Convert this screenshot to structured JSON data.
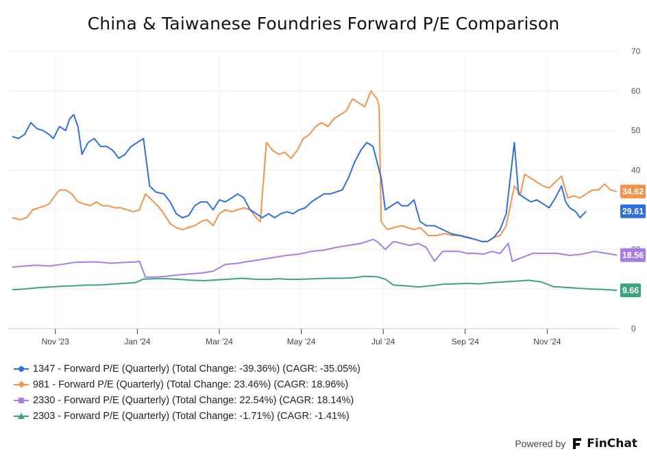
{
  "chart_data": {
    "type": "line",
    "title": "China & Taiwanese Foundries Forward P/E Comparison",
    "xlabel": "",
    "ylabel": "",
    "ylim": [
      0,
      70
    ],
    "yticks": [
      0,
      10,
      20,
      30,
      40,
      50,
      60,
      70
    ],
    "x_ticks": [
      "Nov '23",
      "Jan '24",
      "Mar '24",
      "May '24",
      "Jul '24",
      "Sep '24",
      "Nov '24"
    ],
    "x_range": [
      0,
      14.9
    ],
    "x_tick_positions": [
      1.15,
      3.15,
      5.15,
      7.15,
      9.15,
      11.15,
      13.15
    ],
    "grid": true,
    "series": [
      {
        "name": "1347 - Forward P/E (Quarterly) (Total Change: -39.36%) (CAGR: -35.05%)",
        "color": "#2e6fe0",
        "marker": "circle",
        "end_label": "29.61",
        "points": [
          [
            0.1,
            48.5
          ],
          [
            0.25,
            48
          ],
          [
            0.4,
            49
          ],
          [
            0.55,
            52
          ],
          [
            0.7,
            50.5
          ],
          [
            0.85,
            50
          ],
          [
            1.0,
            49
          ],
          [
            1.1,
            48
          ],
          [
            1.25,
            51
          ],
          [
            1.4,
            50
          ],
          [
            1.5,
            53
          ],
          [
            1.6,
            54
          ],
          [
            1.7,
            51
          ],
          [
            1.8,
            44
          ],
          [
            1.95,
            47
          ],
          [
            2.1,
            48
          ],
          [
            2.25,
            46
          ],
          [
            2.4,
            46
          ],
          [
            2.55,
            45
          ],
          [
            2.7,
            43
          ],
          [
            2.85,
            44
          ],
          [
            3.0,
            46
          ],
          [
            3.15,
            47
          ],
          [
            3.3,
            48
          ],
          [
            3.45,
            36
          ],
          [
            3.6,
            34.5
          ],
          [
            3.8,
            34
          ],
          [
            3.95,
            32
          ],
          [
            4.1,
            29
          ],
          [
            4.25,
            28
          ],
          [
            4.4,
            28.5
          ],
          [
            4.55,
            31
          ],
          [
            4.7,
            32
          ],
          [
            4.85,
            32
          ],
          [
            5.0,
            30
          ],
          [
            5.15,
            32.5
          ],
          [
            5.3,
            32
          ],
          [
            5.45,
            33
          ],
          [
            5.6,
            34
          ],
          [
            5.75,
            33
          ],
          [
            5.9,
            30
          ],
          [
            6.05,
            29
          ],
          [
            6.2,
            28
          ],
          [
            6.35,
            29
          ],
          [
            6.5,
            28
          ],
          [
            6.65,
            29
          ],
          [
            6.8,
            29.5
          ],
          [
            6.95,
            29
          ],
          [
            7.1,
            30
          ],
          [
            7.25,
            30.5
          ],
          [
            7.4,
            32
          ],
          [
            7.55,
            33
          ],
          [
            7.7,
            34
          ],
          [
            7.85,
            34
          ],
          [
            8.0,
            34.5
          ],
          [
            8.15,
            35
          ],
          [
            8.3,
            38
          ],
          [
            8.45,
            42
          ],
          [
            8.6,
            45
          ],
          [
            8.75,
            47
          ],
          [
            8.9,
            46
          ],
          [
            9.0,
            42
          ],
          [
            9.1,
            38
          ],
          [
            9.2,
            30
          ],
          [
            9.35,
            31
          ],
          [
            9.5,
            32
          ],
          [
            9.6,
            31
          ],
          [
            9.75,
            31
          ],
          [
            9.9,
            32.5
          ],
          [
            10.05,
            27
          ],
          [
            10.2,
            26
          ],
          [
            10.4,
            26
          ],
          [
            10.6,
            25
          ],
          [
            10.8,
            24
          ],
          [
            11.0,
            23.5
          ],
          [
            11.2,
            23
          ],
          [
            11.4,
            22.5
          ],
          [
            11.55,
            22
          ],
          [
            11.7,
            22
          ],
          [
            11.85,
            23
          ],
          [
            12.0,
            25
          ],
          [
            12.15,
            29
          ],
          [
            12.25,
            38
          ],
          [
            12.35,
            47
          ],
          [
            12.45,
            34
          ],
          [
            12.6,
            33
          ],
          [
            12.75,
            32
          ],
          [
            12.9,
            32.5
          ],
          [
            13.05,
            31.5
          ],
          [
            13.2,
            30.5
          ],
          [
            13.35,
            33
          ],
          [
            13.5,
            36
          ],
          [
            13.6,
            32
          ],
          [
            13.7,
            30.5
          ],
          [
            13.85,
            29.5
          ],
          [
            13.95,
            28
          ],
          [
            14.1,
            29.61
          ]
        ]
      },
      {
        "name": "981 - Forward P/E (Quarterly) (Total Change: 23.46%) (CAGR: 18.96%)",
        "color": "#f5924a",
        "marker": "diamond",
        "end_label": "34.62",
        "points": [
          [
            0.1,
            28
          ],
          [
            0.3,
            27.5
          ],
          [
            0.45,
            28
          ],
          [
            0.6,
            30
          ],
          [
            0.75,
            30.5
          ],
          [
            0.9,
            31
          ],
          [
            1.0,
            31.5
          ],
          [
            1.1,
            33
          ],
          [
            1.25,
            35
          ],
          [
            1.4,
            35
          ],
          [
            1.55,
            34
          ],
          [
            1.7,
            32
          ],
          [
            1.85,
            31.5
          ],
          [
            2.0,
            31
          ],
          [
            2.15,
            32
          ],
          [
            2.3,
            31
          ],
          [
            2.45,
            31
          ],
          [
            2.6,
            30.5
          ],
          [
            2.75,
            30.5
          ],
          [
            2.9,
            30
          ],
          [
            3.05,
            29.5
          ],
          [
            3.2,
            30
          ],
          [
            3.35,
            34
          ],
          [
            3.5,
            32.5
          ],
          [
            3.65,
            31
          ],
          [
            3.8,
            29
          ],
          [
            3.95,
            26.5
          ],
          [
            4.1,
            25.5
          ],
          [
            4.25,
            25
          ],
          [
            4.4,
            25.5
          ],
          [
            4.55,
            26
          ],
          [
            4.7,
            27
          ],
          [
            4.85,
            27.5
          ],
          [
            5.0,
            26
          ],
          [
            5.15,
            29
          ],
          [
            5.3,
            30
          ],
          [
            5.45,
            29.5
          ],
          [
            5.6,
            30
          ],
          [
            5.75,
            30.5
          ],
          [
            5.9,
            30
          ],
          [
            6.05,
            28
          ],
          [
            6.15,
            27
          ],
          [
            6.3,
            47
          ],
          [
            6.45,
            45
          ],
          [
            6.6,
            44
          ],
          [
            6.75,
            44.5
          ],
          [
            6.9,
            43
          ],
          [
            7.05,
            45
          ],
          [
            7.2,
            48
          ],
          [
            7.35,
            49
          ],
          [
            7.5,
            51
          ],
          [
            7.65,
            52
          ],
          [
            7.8,
            51
          ],
          [
            7.95,
            53
          ],
          [
            8.1,
            54
          ],
          [
            8.25,
            55
          ],
          [
            8.4,
            58
          ],
          [
            8.55,
            57
          ],
          [
            8.7,
            56
          ],
          [
            8.85,
            60
          ],
          [
            9.0,
            58
          ],
          [
            9.05,
            56
          ],
          [
            9.1,
            27
          ],
          [
            9.25,
            25
          ],
          [
            9.4,
            25.5
          ],
          [
            9.6,
            26
          ],
          [
            9.75,
            25.5
          ],
          [
            9.9,
            25
          ],
          [
            10.05,
            25.5
          ],
          [
            10.25,
            23.5
          ],
          [
            10.45,
            23.5
          ],
          [
            10.65,
            24
          ],
          [
            10.85,
            23.5
          ],
          [
            11.05,
            23.5
          ],
          [
            11.25,
            23
          ],
          [
            11.4,
            22.5
          ],
          [
            11.55,
            22
          ],
          [
            11.7,
            22
          ],
          [
            11.85,
            23
          ],
          [
            12.0,
            23.5
          ],
          [
            12.15,
            26
          ],
          [
            12.25,
            31
          ],
          [
            12.35,
            36
          ],
          [
            12.5,
            34
          ],
          [
            12.6,
            39
          ],
          [
            12.75,
            38
          ],
          [
            12.9,
            37
          ],
          [
            13.05,
            36
          ],
          [
            13.2,
            35.5
          ],
          [
            13.35,
            37
          ],
          [
            13.5,
            38.5
          ],
          [
            13.65,
            33
          ],
          [
            13.8,
            33.5
          ],
          [
            13.95,
            33
          ],
          [
            14.1,
            34
          ],
          [
            14.25,
            35
          ],
          [
            14.4,
            35
          ],
          [
            14.55,
            36.5
          ],
          [
            14.7,
            35
          ],
          [
            14.85,
            34.62
          ]
        ]
      },
      {
        "name": "2330 - Forward P/E (Quarterly) (Total Change: 22.54%) (CAGR: 18.14%)",
        "color": "#a77be8",
        "marker": "square",
        "end_label": "18.56",
        "points": [
          [
            0.1,
            15.5
          ],
          [
            0.4,
            15.8
          ],
          [
            0.7,
            16
          ],
          [
            1.0,
            15.8
          ],
          [
            1.3,
            16.2
          ],
          [
            1.6,
            16.7
          ],
          [
            1.9,
            16.8
          ],
          [
            2.2,
            16.8
          ],
          [
            2.5,
            16.5
          ],
          [
            2.8,
            16.7
          ],
          [
            3.1,
            16.8
          ],
          [
            3.2,
            17
          ],
          [
            3.35,
            13
          ],
          [
            3.6,
            13
          ],
          [
            3.85,
            13.2
          ],
          [
            4.1,
            13.5
          ],
          [
            4.4,
            13.8
          ],
          [
            4.7,
            14
          ],
          [
            5.0,
            14.5
          ],
          [
            5.3,
            16.2
          ],
          [
            5.6,
            16.5
          ],
          [
            5.9,
            17
          ],
          [
            6.2,
            17.5
          ],
          [
            6.5,
            18
          ],
          [
            6.8,
            18.5
          ],
          [
            7.1,
            18.8
          ],
          [
            7.4,
            19.5
          ],
          [
            7.7,
            19.8
          ],
          [
            8.0,
            20.5
          ],
          [
            8.3,
            21
          ],
          [
            8.6,
            21.5
          ],
          [
            8.9,
            22.5
          ],
          [
            9.0,
            22
          ],
          [
            9.2,
            20
          ],
          [
            9.4,
            22
          ],
          [
            9.6,
            21.5
          ],
          [
            9.8,
            21
          ],
          [
            10.0,
            21.5
          ],
          [
            10.2,
            20.5
          ],
          [
            10.4,
            17
          ],
          [
            10.6,
            19.5
          ],
          [
            10.8,
            19.5
          ],
          [
            11.0,
            19.5
          ],
          [
            11.2,
            19
          ],
          [
            11.4,
            19
          ],
          [
            11.6,
            18.8
          ],
          [
            11.8,
            19.5
          ],
          [
            12.0,
            19
          ],
          [
            12.2,
            21.5
          ],
          [
            12.3,
            17
          ],
          [
            12.55,
            18
          ],
          [
            12.8,
            19
          ],
          [
            13.1,
            19
          ],
          [
            13.4,
            19
          ],
          [
            13.7,
            18.5
          ],
          [
            14.0,
            18.8
          ],
          [
            14.3,
            19.5
          ],
          [
            14.6,
            19
          ],
          [
            14.85,
            18.56
          ]
        ]
      },
      {
        "name": "2303 - Forward P/E (Quarterly) (Total Change: -1.71%) (CAGR: -1.41%)",
        "color": "#3aa57a",
        "marker": "triangle",
        "end_label": "9.66",
        "points": [
          [
            0.1,
            9.8
          ],
          [
            0.4,
            10
          ],
          [
            0.7,
            10.3
          ],
          [
            1.0,
            10.5
          ],
          [
            1.3,
            10.7
          ],
          [
            1.6,
            10.8
          ],
          [
            1.9,
            11
          ],
          [
            2.2,
            11
          ],
          [
            2.5,
            11.2
          ],
          [
            2.8,
            11.4
          ],
          [
            3.1,
            11.6
          ],
          [
            3.3,
            12.5
          ],
          [
            3.6,
            12.6
          ],
          [
            3.9,
            12.6
          ],
          [
            4.2,
            12.4
          ],
          [
            4.5,
            12.2
          ],
          [
            4.8,
            12.1
          ],
          [
            5.1,
            12.3
          ],
          [
            5.4,
            12.5
          ],
          [
            5.7,
            12.7
          ],
          [
            6.0,
            12.5
          ],
          [
            6.3,
            12.4
          ],
          [
            6.6,
            12.6
          ],
          [
            6.9,
            12.4
          ],
          [
            7.2,
            12.5
          ],
          [
            7.5,
            12.6
          ],
          [
            7.8,
            12.7
          ],
          [
            8.1,
            12.7
          ],
          [
            8.4,
            12.8
          ],
          [
            8.7,
            13.2
          ],
          [
            9.0,
            13.1
          ],
          [
            9.2,
            12.5
          ],
          [
            9.4,
            11
          ],
          [
            9.7,
            10.8
          ],
          [
            10.0,
            10.5
          ],
          [
            10.3,
            10.8
          ],
          [
            10.6,
            11.2
          ],
          [
            10.9,
            11.3
          ],
          [
            11.2,
            11.4
          ],
          [
            11.5,
            11.3
          ],
          [
            11.8,
            11.6
          ],
          [
            12.1,
            11.8
          ],
          [
            12.4,
            12
          ],
          [
            12.7,
            12.2
          ],
          [
            13.0,
            11.8
          ],
          [
            13.3,
            10.6
          ],
          [
            13.6,
            10.4
          ],
          [
            13.9,
            10.2
          ],
          [
            14.2,
            10
          ],
          [
            14.5,
            9.9
          ],
          [
            14.85,
            9.66
          ]
        ]
      }
    ]
  },
  "footer": {
    "powered_by": "Powered by",
    "brand": "FinChat"
  }
}
